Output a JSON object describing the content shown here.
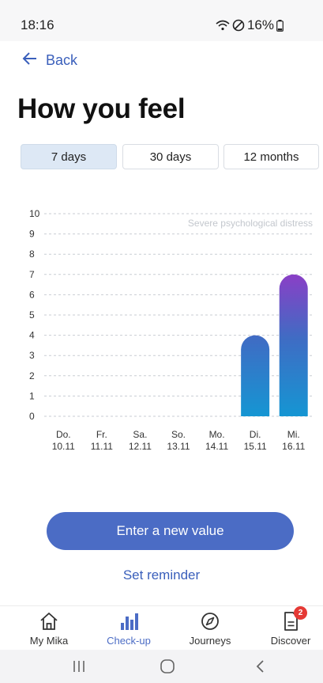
{
  "status": {
    "time": "18:16",
    "battery": "16%"
  },
  "back": {
    "label": "Back"
  },
  "page": {
    "title": "How you feel"
  },
  "tabs": [
    {
      "label": "7 days",
      "active": true
    },
    {
      "label": "30 days",
      "active": false
    },
    {
      "label": "12 months",
      "active": false
    }
  ],
  "chart_data": {
    "type": "bar",
    "categories": [
      [
        "Do.",
        "10.11"
      ],
      [
        "Fr.",
        "11.11"
      ],
      [
        "Sa.",
        "12.11"
      ],
      [
        "So.",
        "13.11"
      ],
      [
        "Mo.",
        "14.11"
      ],
      [
        "Di.",
        "15.11"
      ],
      [
        "Mi.",
        "16.11"
      ]
    ],
    "values": [
      null,
      null,
      null,
      null,
      null,
      4,
      7
    ],
    "ylim": [
      0,
      10
    ],
    "yticks": [
      0,
      1,
      2,
      3,
      4,
      5,
      6,
      7,
      8,
      9,
      10
    ],
    "annotation": "Severe psychological distress",
    "grid": true,
    "colors": {
      "bar_bottom": "#1596d3",
      "bar_mid": "#3f6cc4",
      "bar_top": "#8a3fc6"
    }
  },
  "actions": {
    "primary": "Enter a new value",
    "secondary": "Set reminder"
  },
  "nav": {
    "items": [
      {
        "label": "My Mika",
        "icon": "home-icon"
      },
      {
        "label": "Check-up",
        "icon": "bar-chart-icon"
      },
      {
        "label": "Journeys",
        "icon": "compass-icon"
      },
      {
        "label": "Discover",
        "icon": "document-icon",
        "badge": "2"
      }
    ]
  },
  "colors": {
    "accent": "#4b6cc5",
    "link": "#3a5fbb",
    "badge": "#e53935"
  }
}
